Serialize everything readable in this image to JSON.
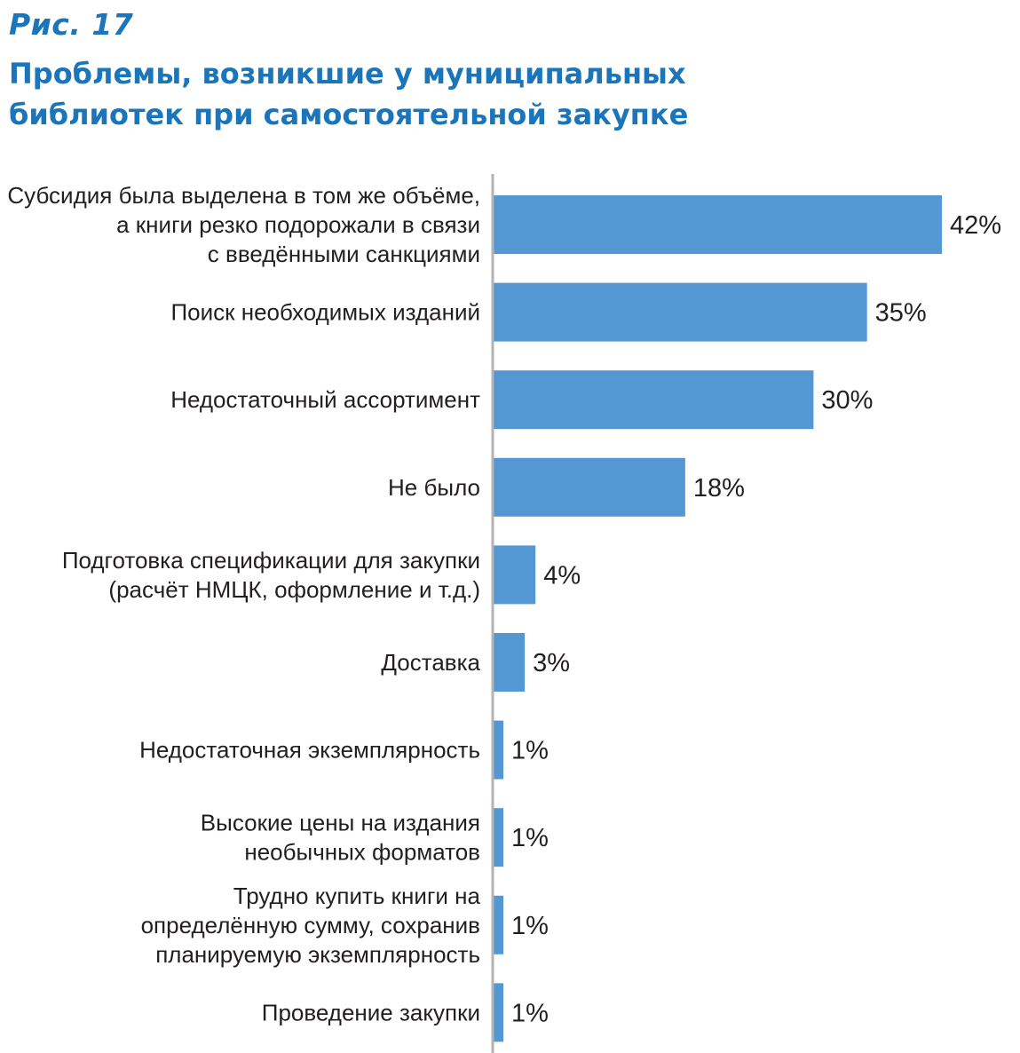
{
  "figure": {
    "label": "Рис. 17",
    "title_lines": [
      "Проблемы, возникшие у муниципальных",
      "библиотек при самостоятельной закупке"
    ]
  },
  "chart_data": {
    "type": "bar",
    "orientation": "horizontal",
    "title": "Проблемы, возникшие у муниципальных библиотек при самостоятельной закупке",
    "categories": [
      [
        "Субсидия была выделена в том же объёме,",
        "а книги резко подорожали в связи",
        "с введёнными санкциями"
      ],
      [
        "Поиск необходимых изданий"
      ],
      [
        "Недостаточный ассортимент"
      ],
      [
        "Не было"
      ],
      [
        "Подготовка спецификации для закупки",
        "(расчёт НМЦК, оформление и т.д.)"
      ],
      [
        "Доставка"
      ],
      [
        "Недостаточная  экземплярность"
      ],
      [
        "Высокие цены на издания",
        "необычных форматов"
      ],
      [
        "Трудно купить книги на",
        "определённую сумму, сохранив",
        "планируемую экземплярность"
      ],
      [
        "Проведение закупки"
      ]
    ],
    "values": [
      42,
      35,
      30,
      18,
      4,
      3,
      1,
      1,
      1,
      1
    ],
    "value_labels": [
      "42%",
      "35%",
      "30%",
      "18%",
      "4%",
      "3%",
      "1%",
      "1%",
      "1%",
      "1%"
    ],
    "xlim": [
      0,
      42
    ],
    "bar_color": "#5397d3",
    "axis_color": "#b3b3b3",
    "legend": "none",
    "grid": false
  }
}
